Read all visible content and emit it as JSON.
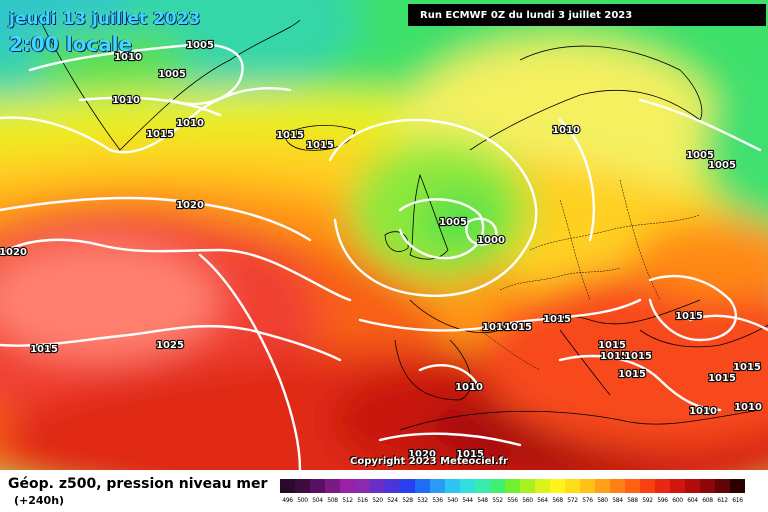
{
  "header": {
    "date": "jeudi 13 juillet 2023",
    "time": "2:00 locale",
    "run": "Run ECMWF 0Z du lundi 3 juillet 2023"
  },
  "copyright": "Copyright 2023 Meteociel.fr",
  "footer": {
    "title": "Géop. z500, pression niveau mer",
    "lead": "(+240h)"
  },
  "legend": [
    {
      "label": "496",
      "color": "#2a0a2a"
    },
    {
      "label": "500",
      "color": "#3e0d3e"
    },
    {
      "label": "504",
      "color": "#5a1060"
    },
    {
      "label": "508",
      "color": "#7a1a82"
    },
    {
      "label": "512",
      "color": "#9a20a8"
    },
    {
      "label": "516",
      "color": "#8a2ab0"
    },
    {
      "label": "520",
      "color": "#6a2ec8"
    },
    {
      "label": "524",
      "color": "#4a34dc"
    },
    {
      "label": "528",
      "color": "#2a40f0"
    },
    {
      "label": "532",
      "color": "#1f6cf6"
    },
    {
      "label": "536",
      "color": "#2a9af6"
    },
    {
      "label": "540",
      "color": "#2ec4f4"
    },
    {
      "label": "544",
      "color": "#30e0e0"
    },
    {
      "label": "548",
      "color": "#38ecb0"
    },
    {
      "label": "552",
      "color": "#40f070"
    },
    {
      "label": "556",
      "color": "#70f030"
    },
    {
      "label": "560",
      "color": "#a8f020"
    },
    {
      "label": "564",
      "color": "#dcf21a"
    },
    {
      "label": "568",
      "color": "#fff41a"
    },
    {
      "label": "572",
      "color": "#ffde18"
    },
    {
      "label": "576",
      "color": "#ffc018"
    },
    {
      "label": "580",
      "color": "#ffa018"
    },
    {
      "label": "584",
      "color": "#ff8016"
    },
    {
      "label": "588",
      "color": "#ff6014"
    },
    {
      "label": "592",
      "color": "#f84012"
    },
    {
      "label": "596",
      "color": "#e82810"
    },
    {
      "label": "600",
      "color": "#d0160e"
    },
    {
      "label": "604",
      "color": "#b00c0c"
    },
    {
      "label": "608",
      "color": "#8c0808"
    },
    {
      "label": "612",
      "color": "#640404"
    },
    {
      "label": "616",
      "color": "#2a0000"
    }
  ],
  "isobar_labels": [
    {
      "text": "1010"
    },
    {
      "text": "1005"
    },
    {
      "text": "1005"
    },
    {
      "text": "1010"
    },
    {
      "text": "1015"
    },
    {
      "text": "1010"
    },
    {
      "text": "1015"
    },
    {
      "text": "1015"
    },
    {
      "text": "1020"
    },
    {
      "text": "1020"
    },
    {
      "text": "1025"
    },
    {
      "text": "1015"
    },
    {
      "text": "1005"
    },
    {
      "text": "1000"
    },
    {
      "text": "1010"
    },
    {
      "text": "1005"
    },
    {
      "text": "1005"
    },
    {
      "text": "1010"
    },
    {
      "text": "1015"
    },
    {
      "text": "1015"
    },
    {
      "text": "1015"
    },
    {
      "text": "1015"
    },
    {
      "text": "1015"
    },
    {
      "text": "1015"
    },
    {
      "text": "1015"
    },
    {
      "text": "1015"
    },
    {
      "text": "1015"
    },
    {
      "text": "1010"
    },
    {
      "text": "1010"
    },
    {
      "text": "1010"
    },
    {
      "text": "1020"
    },
    {
      "text": "1015"
    }
  ]
}
